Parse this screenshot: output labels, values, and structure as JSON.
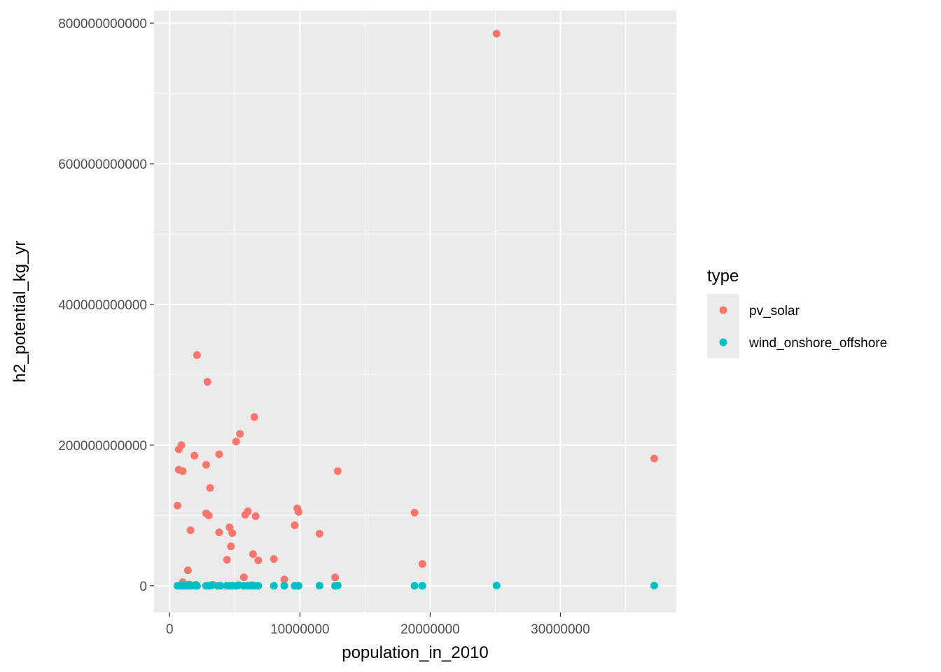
{
  "chart_data": {
    "type": "scatter",
    "xlabel": "population_in_2010",
    "ylabel": "h2_potential_kg_yr",
    "xlim": [
      -1200000,
      38900000
    ],
    "ylim": [
      -38000000000,
      818000000000
    ],
    "x_ticks": [
      0,
      10000000,
      20000000,
      30000000
    ],
    "x_tick_labels": [
      "0",
      "10000000",
      "20000000",
      "30000000"
    ],
    "y_ticks": [
      0,
      200000000000,
      400000000000,
      600000000000,
      800000000000
    ],
    "y_tick_labels": [
      "0",
      "200000000000",
      "400000000000",
      "600000000000",
      "800000000000"
    ],
    "grid": true,
    "legend": {
      "title": "type",
      "position": "right",
      "entries": [
        {
          "name": "pv_solar",
          "color": "#F8766D"
        },
        {
          "name": "wind_onshore_offshore",
          "color": "#00BFC4"
        }
      ]
    },
    "series": [
      {
        "name": "pv_solar",
        "color": "#F8766D",
        "points": [
          [
            25100000,
            785000000000
          ],
          [
            37200000,
            181000000000
          ],
          [
            2100000,
            328000000000
          ],
          [
            2900000,
            290000000000
          ],
          [
            6500000,
            240000000000
          ],
          [
            5400000,
            216000000000
          ],
          [
            5100000,
            205000000000
          ],
          [
            900000,
            200000000000
          ],
          [
            700000,
            194000000000
          ],
          [
            3800000,
            187000000000
          ],
          [
            1900000,
            185000000000
          ],
          [
            2800000,
            172000000000
          ],
          [
            700000,
            165000000000
          ],
          [
            1000000,
            163000000000
          ],
          [
            12900000,
            163000000000
          ],
          [
            3100000,
            139000000000
          ],
          [
            600000,
            114000000000
          ],
          [
            9800000,
            110000000000
          ],
          [
            6000000,
            106000000000
          ],
          [
            9900000,
            105000000000
          ],
          [
            18800000,
            104000000000
          ],
          [
            2800000,
            103000000000
          ],
          [
            5800000,
            101000000000
          ],
          [
            3000000,
            100000000000
          ],
          [
            6600000,
            99000000000
          ],
          [
            9600000,
            86000000000
          ],
          [
            4600000,
            83000000000
          ],
          [
            1600000,
            79000000000
          ],
          [
            3800000,
            76000000000
          ],
          [
            4800000,
            75000000000
          ],
          [
            11500000,
            74000000000
          ],
          [
            4700000,
            56000000000
          ],
          [
            6400000,
            45000000000
          ],
          [
            8000000,
            38000000000
          ],
          [
            4400000,
            37000000000
          ],
          [
            6800000,
            36000000000
          ],
          [
            19400000,
            31000000000
          ],
          [
            1400000,
            22000000000
          ],
          [
            5700000,
            12000000000
          ],
          [
            12700000,
            12000000000
          ],
          [
            8800000,
            9000000000
          ],
          [
            1000000,
            5000000000
          ],
          [
            1500000,
            2000000000
          ],
          [
            2000000,
            1500000000
          ],
          [
            3300000,
            1500000000
          ],
          [
            6300000,
            1000000000
          ]
        ]
      },
      {
        "name": "wind_onshore_offshore",
        "color": "#00BFC4",
        "points": [
          [
            600000,
            0
          ],
          [
            800000,
            0
          ],
          [
            1000000,
            0
          ],
          [
            1200000,
            0
          ],
          [
            1400000,
            0
          ],
          [
            1600000,
            0
          ],
          [
            1900000,
            0
          ],
          [
            2100000,
            0
          ],
          [
            2800000,
            0
          ],
          [
            3000000,
            0
          ],
          [
            3200000,
            500000000
          ],
          [
            3700000,
            0
          ],
          [
            3900000,
            0
          ],
          [
            4400000,
            0
          ],
          [
            4600000,
            0
          ],
          [
            4800000,
            0
          ],
          [
            5100000,
            0
          ],
          [
            5300000,
            800000000
          ],
          [
            5700000,
            0
          ],
          [
            6000000,
            0
          ],
          [
            6300000,
            0
          ],
          [
            6500000,
            0
          ],
          [
            6800000,
            0
          ],
          [
            8000000,
            0
          ],
          [
            8800000,
            0
          ],
          [
            9600000,
            0
          ],
          [
            9800000,
            0
          ],
          [
            9900000,
            0
          ],
          [
            11500000,
            200000000
          ],
          [
            12700000,
            0
          ],
          [
            12900000,
            300000000
          ],
          [
            18800000,
            0
          ],
          [
            19400000,
            0
          ],
          [
            25100000,
            300000000
          ],
          [
            37200000,
            200000000
          ]
        ]
      }
    ]
  }
}
